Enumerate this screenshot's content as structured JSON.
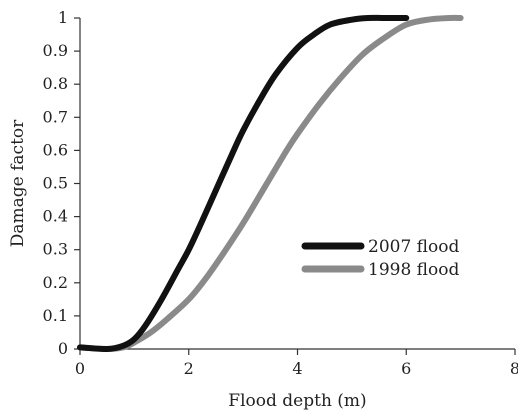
{
  "chart_data": {
    "type": "line",
    "title": "",
    "xlabel": "Flood depth (m)",
    "ylabel": "Damage factor",
    "xlim": [
      0,
      8
    ],
    "ylim": [
      0,
      1
    ],
    "xticks": [
      0,
      2,
      4,
      6,
      8
    ],
    "yticks": [
      0,
      0.1,
      0.2,
      0.3,
      0.4,
      0.5,
      0.6,
      0.7,
      0.8,
      0.9,
      1
    ],
    "ytick_labels": [
      "0",
      "0.1",
      "0.2",
      "0.3",
      "0.4",
      "0.5",
      "0.6",
      "0.7",
      "0.8",
      "0.9",
      "1"
    ],
    "grid": false,
    "legend_position": "center-right",
    "series": [
      {
        "name": "2007 flood",
        "color": "#111111",
        "x": [
          0,
          0.5,
          0.8,
          1.0,
          1.2,
          1.5,
          1.8,
          2.0,
          2.2,
          2.5,
          2.8,
          3.0,
          3.3,
          3.6,
          4.0,
          4.3,
          4.6,
          5.0,
          5.3,
          5.6,
          6.0
        ],
        "y": [
          0.005,
          0.0,
          0.01,
          0.03,
          0.07,
          0.15,
          0.24,
          0.3,
          0.37,
          0.48,
          0.59,
          0.66,
          0.75,
          0.83,
          0.91,
          0.95,
          0.98,
          0.995,
          1.0,
          1.0,
          1.0
        ]
      },
      {
        "name": "1998 flood",
        "color": "#8a8a8a",
        "x": [
          0,
          0.5,
          0.8,
          1.0,
          1.3,
          1.6,
          2.0,
          2.3,
          2.6,
          3.0,
          3.4,
          3.8,
          4.0,
          4.4,
          4.8,
          5.2,
          5.6,
          6.0,
          6.4,
          6.8,
          7.0
        ],
        "y": [
          0.005,
          0.0,
          0.005,
          0.02,
          0.05,
          0.09,
          0.15,
          0.21,
          0.28,
          0.38,
          0.49,
          0.6,
          0.65,
          0.74,
          0.82,
          0.89,
          0.94,
          0.98,
          0.995,
          1.0,
          1.0
        ]
      }
    ]
  }
}
